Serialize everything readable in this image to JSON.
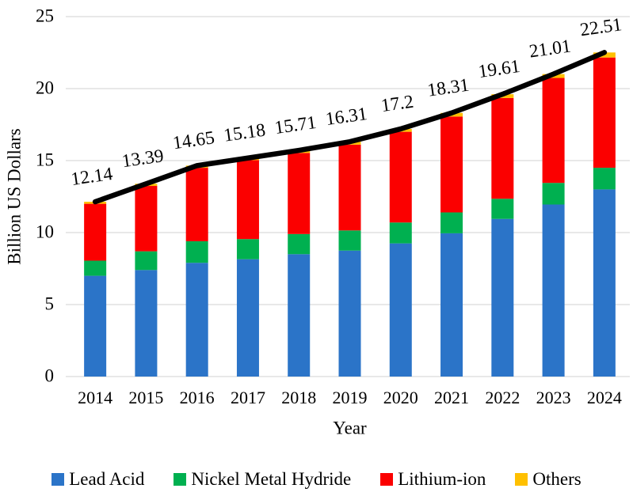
{
  "page": {
    "background": "#ffffff"
  },
  "chart_data": {
    "type": "bar",
    "subtype": "stacked-bars-with-total-line",
    "title": "",
    "xlabel": "Year",
    "ylabel": "Billion US Dollars",
    "ylim": [
      0,
      25
    ],
    "yticks": [
      0,
      5,
      10,
      15,
      20,
      25
    ],
    "ytick_labels": [
      "0",
      "5",
      "10",
      "15",
      "20",
      "25"
    ],
    "grid": true,
    "gridline_color": "#d9d9d9",
    "legend_position": "bottom",
    "categories": [
      "2014",
      "2015",
      "2016",
      "2017",
      "2018",
      "2019",
      "2020",
      "2021",
      "2022",
      "2023",
      "2024"
    ],
    "series": [
      {
        "name": "Lead Acid",
        "color": "#2B74C8",
        "values": [
          7.0,
          7.4,
          7.9,
          8.15,
          8.5,
          8.75,
          9.25,
          9.95,
          10.95,
          11.95,
          13.0
        ]
      },
      {
        "name": "Nickel Metal Hydride",
        "color": "#00B050",
        "values": [
          1.05,
          1.3,
          1.5,
          1.4,
          1.4,
          1.4,
          1.45,
          1.45,
          1.4,
          1.5,
          1.5
        ]
      },
      {
        "name": "Lithium-ion",
        "color": "#FB0000",
        "values": [
          3.95,
          4.54,
          5.1,
          5.48,
          5.63,
          5.96,
          6.3,
          6.66,
          7.0,
          7.29,
          7.66
        ]
      },
      {
        "name": "Others",
        "color": "#FFC000",
        "values": [
          0.14,
          0.15,
          0.15,
          0.15,
          0.18,
          0.2,
          0.2,
          0.25,
          0.26,
          0.27,
          0.35
        ]
      }
    ],
    "total_line": {
      "name": "Total",
      "color": "#000000",
      "values": [
        12.14,
        13.39,
        14.65,
        15.18,
        15.71,
        16.31,
        17.2,
        18.31,
        19.61,
        21.01,
        22.51
      ],
      "labels": [
        "12.14",
        "13.39",
        "14.65",
        "15.18",
        "15.71",
        "16.31",
        "17.2",
        "18.31",
        "19.61",
        "21.01",
        "22.51"
      ]
    }
  }
}
